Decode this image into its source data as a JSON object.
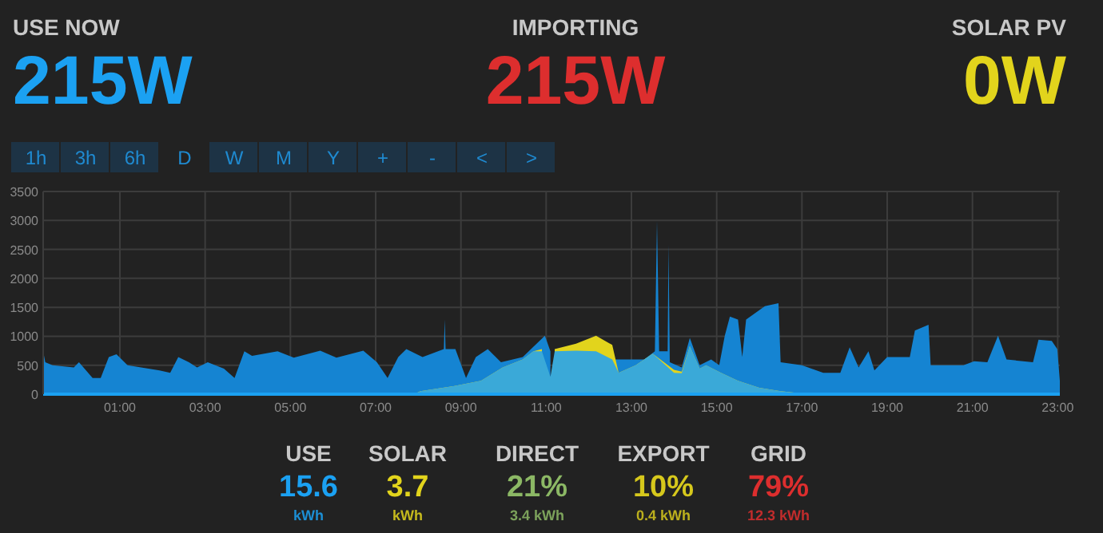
{
  "chart_data": [
    {
      "type": "other",
      "title": "USE NOW",
      "annotations": [
        "215W"
      ],
      "color": "#1ba1f2"
    },
    {
      "type": "other",
      "title": "IMPORTING",
      "annotations": [
        "215W"
      ],
      "color": "#dd2e2e"
    },
    {
      "type": "other",
      "title": "SOLAR PV",
      "annotations": [
        "0W"
      ],
      "color": "#e2d41c"
    },
    {
      "type": "other",
      "annotations": [
        "1h",
        "3h",
        "6h",
        "D",
        "W",
        "M",
        "Y",
        "+",
        "-",
        "<",
        ">"
      ],
      "color": "#1f8ad0"
    },
    {
      "type": "area",
      "xlim": [
        -0.8,
        23.05
      ],
      "ylim": [
        0,
        3500
      ],
      "yticks": [
        0,
        500,
        1000,
        1500,
        2000,
        2500,
        3000,
        3500
      ],
      "xticks": [
        {
          "value": 1,
          "label": "01:00"
        },
        {
          "value": 3,
          "label": "03:00"
        },
        {
          "value": 5,
          "label": "05:00"
        },
        {
          "value": 7,
          "label": "07:00"
        },
        {
          "value": 9,
          "label": "09:00"
        },
        {
          "value": 11,
          "label": "11:00"
        },
        {
          "value": 13,
          "label": "13:00"
        },
        {
          "value": 15,
          "label": "15:00"
        },
        {
          "value": 17,
          "label": "17:00"
        },
        {
          "value": 19,
          "label": "19:00"
        },
        {
          "value": 21,
          "label": "21:00"
        },
        {
          "value": 23,
          "label": "23:00"
        }
      ],
      "grid": true,
      "series": [
        {
          "color": "#1584d2",
          "x": [
            -0.8,
            -0.75,
            -0.58,
            -0.08,
            0.04,
            0.36,
            0.55,
            0.74,
            0.92,
            1.18,
            1.93,
            2.18,
            2.37,
            2.62,
            2.81,
            3.06,
            3.44,
            3.69,
            3.92,
            4.1,
            4.7,
            5.08,
            5.7,
            6.08,
            6.71,
            7.03,
            7.28,
            7.53,
            7.72,
            8.1,
            8.6,
            8.62,
            8.64,
            8.87,
            9.12,
            9.35,
            9.63,
            9.94,
            10.45,
            10.97,
            11.1,
            11.48,
            12.23,
            12.6,
            13.3,
            13.55,
            13.6,
            13.65,
            13.85,
            13.87,
            13.9,
            14.18,
            14.37,
            14.6,
            14.87,
            15.06,
            15.19,
            15.31,
            15.5,
            15.6,
            15.69,
            16.13,
            16.45,
            16.5,
            17.0,
            17.5,
            17.9,
            18.12,
            18.33,
            18.56,
            18.7,
            19.0,
            19.53,
            19.65,
            19.97,
            20.02,
            20.79,
            21.04,
            21.35,
            21.6,
            21.8,
            22.42,
            22.55,
            22.86,
            22.99,
            23.05
          ],
          "values": [
            740,
            550,
            500,
            460,
            550,
            280,
            280,
            640,
            690,
            500,
            410,
            370,
            640,
            550,
            460,
            550,
            440,
            280,
            740,
            660,
            740,
            630,
            750,
            630,
            750,
            550,
            280,
            640,
            780,
            640,
            780,
            1290,
            780,
            780,
            280,
            640,
            780,
            550,
            640,
            1010,
            740,
            null,
            null,
            600,
            600,
            740,
            2990,
            740,
            740,
            2580,
            550,
            460,
            970,
            500,
            600,
            500,
            1010,
            1340,
            1290,
            640,
            1290,
            1520,
            1570,
            550,
            500,
            370,
            370,
            810,
            460,
            740,
            410,
            640,
            640,
            1100,
            1200,
            500,
            500,
            570,
            550,
            1010,
            600,
            550,
            940,
            920,
            780,
            230
          ]
        },
        {
          "color": "#e2d41c",
          "x": [
            7.9,
            8.05,
            8.85,
            9.47,
            9.98,
            10.45,
            10.7,
            10.9,
            11.1,
            11.2,
            11.7,
            12.17,
            12.55,
            12.7,
            13.1,
            13.5,
            14.0,
            14.18,
            14.37,
            14.6,
            14.75,
            15.1,
            15.5,
            16.0,
            16.5,
            16.9,
            17.0
          ],
          "values": [
            0,
            50,
            140,
            230,
            460,
            600,
            740,
            780,
            null,
            780,
            870,
            1010,
            850,
            370,
            500,
            700,
            420,
            390,
            830,
            440,
            500,
            370,
            230,
            110,
            50,
            20,
            0
          ]
        },
        {
          "color": "#3aa9d8",
          "x": [
            7.9,
            8.05,
            8.85,
            9.47,
            9.98,
            10.45,
            10.7,
            10.9,
            11.1,
            11.2,
            11.7,
            12.17,
            12.55,
            12.7,
            13.1,
            13.5,
            14.0,
            14.18,
            14.37,
            14.6,
            14.75,
            15.1,
            15.5,
            16.0,
            16.5,
            16.9,
            17.0
          ],
          "values": [
            0,
            50,
            140,
            230,
            460,
            600,
            740,
            740,
            300,
            740,
            750,
            740,
            600,
            370,
            500,
            700,
            370,
            360,
            830,
            440,
            500,
            370,
            230,
            110,
            50,
            20,
            0
          ]
        }
      ]
    },
    {
      "type": "other",
      "title": "USE",
      "annotations": [
        "15.6",
        "kWh"
      ],
      "color": "#1ba1f2"
    },
    {
      "type": "other",
      "title": "SOLAR",
      "annotations": [
        "3.7",
        "kWh"
      ],
      "color": "#e2d41c"
    },
    {
      "type": "other",
      "title": "DIRECT",
      "annotations": [
        "21%",
        "3.4 kWh"
      ],
      "color": "#8cb865"
    },
    {
      "type": "other",
      "title": "EXPORT",
      "annotations": [
        "10%",
        "0.4 kWh"
      ],
      "color": "#d6c81c"
    },
    {
      "type": "other",
      "title": "GRID",
      "annotations": [
        "79%",
        "12.3 kWh"
      ],
      "color": "#dd2e2e"
    }
  ]
}
